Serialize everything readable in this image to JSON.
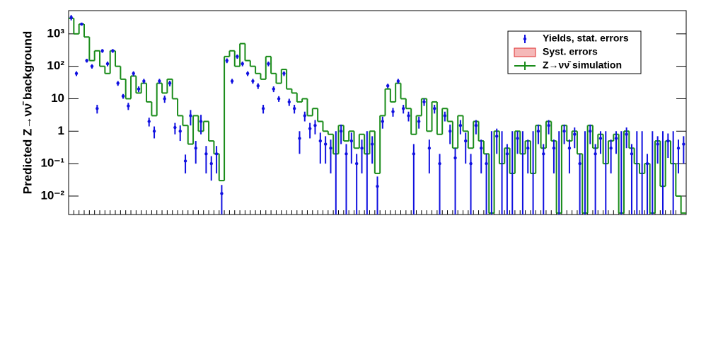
{
  "chart_data": {
    "type": "step-log",
    "y_label": "Predicted Z→νν̄ background",
    "log_y": true,
    "ylim": [
      0.0027,
      5200
    ],
    "yticks": [
      {
        "value": 0.01,
        "label": "10⁻²"
      },
      {
        "value": 0.1,
        "label": "10⁻¹"
      },
      1,
      10,
      {
        "value": 100,
        "label": "10²"
      },
      {
        "value": 1000,
        "label": "10³"
      }
    ],
    "legend_position": "upper right",
    "series": [
      {
        "name": "Yields, stat. errors",
        "color": "#1010e0",
        "values": [
          3200,
          60,
          2000,
          150,
          100,
          5,
          300,
          120,
          300,
          30,
          12,
          6,
          60,
          20,
          35,
          2,
          1,
          35,
          10,
          30,
          1.3,
          1,
          0.12,
          3,
          0.3,
          2,
          0.2,
          0.1,
          0.2,
          0.012,
          150,
          35,
          200,
          120,
          60,
          35,
          25,
          5,
          120,
          20,
          10,
          60,
          8,
          5,
          0.6,
          3,
          1.2,
          1.5,
          0.5,
          0.4,
          0.3,
          0,
          1,
          0.2,
          0.5,
          0.1,
          0.3,
          0,
          0.4,
          0.02,
          2,
          25,
          4,
          35,
          5,
          3,
          0.2,
          2,
          8,
          0.3,
          5,
          0.1,
          3,
          1,
          0.15,
          1.5,
          0.5,
          0.1,
          1.5,
          0.3,
          0.1,
          0,
          0.7,
          0,
          0.2,
          0,
          0.6,
          0,
          0.3,
          0,
          1,
          0.2,
          1.5,
          0.3,
          0,
          1,
          0.3,
          0.8,
          0.1,
          0,
          1,
          0.2,
          0.6,
          0,
          0.3,
          0.6,
          0,
          0.8,
          0.2,
          0,
          0,
          0.1,
          0,
          0.4,
          0,
          0.5,
          0,
          0.3,
          0.4
        ],
        "errors": [
          600,
          10,
          200,
          20,
          15,
          1.5,
          40,
          20,
          40,
          5,
          2,
          1.5,
          10,
          4,
          6,
          0.6,
          0.4,
          6,
          2.5,
          6,
          0.5,
          0.5,
          0.07,
          1.5,
          0.2,
          1.2,
          0.15,
          0.07,
          0.15,
          0.01,
          25,
          6,
          30,
          20,
          10,
          6,
          5,
          1.5,
          20,
          4,
          2,
          10,
          2,
          1.5,
          0.4,
          1,
          0.6,
          0.7,
          0.4,
          0.3,
          0.25,
          1,
          0.6,
          0.2,
          0.4,
          0.1,
          0.25,
          1,
          0.3,
          0.02,
          0.8,
          4,
          1.2,
          6,
          1.5,
          1,
          0.2,
          0.8,
          2,
          0.25,
          1.5,
          0.1,
          1,
          0.6,
          0.15,
          0.7,
          0.4,
          0.1,
          0.7,
          0.25,
          0.1,
          1,
          0.5,
          1,
          0.2,
          1,
          0.4,
          1,
          0.25,
          1,
          0.6,
          0.2,
          0.7,
          0.25,
          1,
          0.6,
          0.25,
          0.5,
          0.1,
          1,
          0.6,
          0.2,
          0.4,
          1,
          0.25,
          0.4,
          1,
          0.5,
          0.2,
          1,
          1,
          0.1,
          1,
          0.3,
          1,
          0.35,
          1,
          0.25,
          0.3
        ]
      },
      {
        "name": "Syst. errors",
        "color": "#f5b8b8",
        "values": []
      },
      {
        "name": "Z→νν̄ simulation",
        "color": "#1a8c1a",
        "values": [
          3000,
          1000,
          2000,
          800,
          150,
          300,
          100,
          60,
          300,
          100,
          40,
          10,
          50,
          15,
          30,
          8,
          3,
          30,
          15,
          40,
          10,
          3,
          1.5,
          0.4,
          3,
          1,
          2,
          0.5,
          0.2,
          0.03,
          200,
          300,
          100,
          500,
          150,
          100,
          60,
          40,
          200,
          60,
          30,
          80,
          20,
          15,
          8,
          10,
          3,
          5,
          2,
          1,
          0.8,
          0.2,
          1.5,
          0.5,
          1,
          0.3,
          0.8,
          0.2,
          1,
          0.05,
          3,
          20,
          8,
          30,
          10,
          5,
          0.8,
          3,
          10,
          1,
          8,
          0.8,
          5,
          2,
          0.3,
          3,
          1,
          0.3,
          2,
          0.5,
          0.2,
          0.003,
          1,
          0.1,
          0.3,
          0.05,
          1,
          0.2,
          0.5,
          0.05,
          1.5,
          0.3,
          2,
          0.5,
          0.003,
          1.5,
          0.5,
          1,
          0.2,
          0.003,
          1.5,
          0.3,
          0.8,
          0.1,
          0.5,
          0.8,
          0.003,
          1,
          0.3,
          0.1,
          0.05,
          0.1,
          0.003,
          0.5,
          0.02,
          0.5,
          0.1,
          0.01,
          0.003
        ]
      }
    ]
  }
}
